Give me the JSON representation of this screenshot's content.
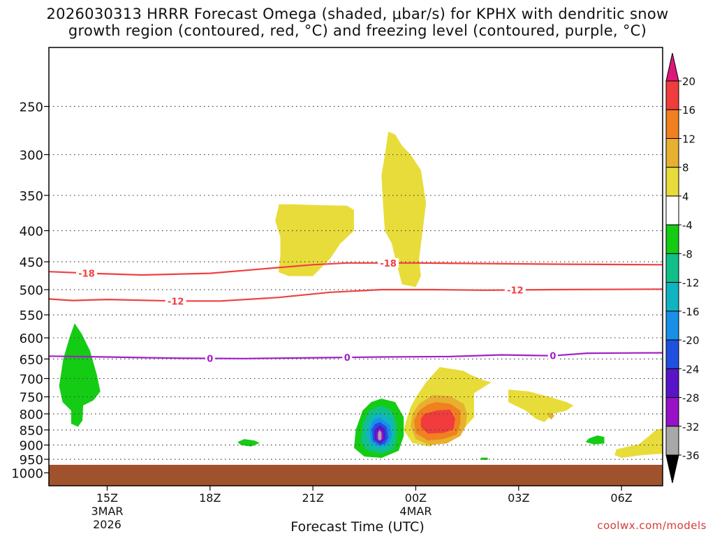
{
  "title_line1": "2026030313 HRRR Forecast Omega (shaded, μbar/s) for KPHX with dendritic snow",
  "title_line2": "growth region (contoured, red, °C) and freezing level (contoured, purple, °C)",
  "credit": "coolwx.com/models",
  "chart_data": {
    "type": "time-height contour",
    "title": "2026030313 HRRR Forecast Omega (shaded, μbar/s) for KPHX with dendritic snow growth region (contoured, red, °C) and freezing level (contoured, purple, °C)",
    "xlabel": "Forecast Time (UTC)",
    "ylabel": "",
    "xlim_hours": [
      13.3,
      31.2
    ],
    "ylim_hPa": [
      1050,
      200
    ],
    "y_scale": "log-pressure",
    "grid": true,
    "x_ticks": [
      {
        "hour": 15,
        "label": "15Z",
        "sub1": "3MAR",
        "sub2": "2026"
      },
      {
        "hour": 18,
        "label": "18Z",
        "sub1": "",
        "sub2": ""
      },
      {
        "hour": 21,
        "label": "21Z",
        "sub1": "",
        "sub2": ""
      },
      {
        "hour": 24,
        "label": "00Z",
        "sub1": "4MAR",
        "sub2": ""
      },
      {
        "hour": 27,
        "label": "03Z",
        "sub1": "",
        "sub2": ""
      },
      {
        "hour": 30,
        "label": "06Z",
        "sub1": "",
        "sub2": ""
      }
    ],
    "y_ticks": [
      250,
      300,
      350,
      400,
      450,
      500,
      550,
      600,
      650,
      700,
      750,
      800,
      850,
      900,
      950,
      1000
    ],
    "surface_pressure_hPa": 970,
    "surface_color": "#a0522d",
    "colorbar": {
      "labels": [
        "20",
        "16",
        "12",
        "8",
        "4",
        "-4",
        "-8",
        "-12",
        "-16",
        "-20",
        "-24",
        "-28",
        "-32",
        "-36"
      ],
      "colors": [
        "#e0157a",
        "#f03c3c",
        "#f08020",
        "#e8b030",
        "#e8dc3a",
        "#ffffff",
        "#14cc14",
        "#10c088",
        "#10b4c0",
        "#1890e8",
        "#2050e0",
        "#5a14c8",
        "#9810c8",
        "#a8a8a8",
        "#000000"
      ]
    },
    "contours": [
      {
        "name": "-18",
        "color": "#f04040",
        "label": "-18",
        "points": [
          [
            13.3,
            467
          ],
          [
            14.5,
            470
          ],
          [
            16,
            473
          ],
          [
            18,
            470
          ],
          [
            20,
            460
          ],
          [
            21,
            455
          ],
          [
            22,
            452
          ],
          [
            24,
            452
          ],
          [
            26,
            453
          ],
          [
            28,
            454
          ],
          [
            31.2,
            455
          ]
        ],
        "label_hours": [
          14.4,
          23.2
        ]
      },
      {
        "name": "-12",
        "color": "#f04040",
        "label": "-12",
        "points": [
          [
            13.3,
            518
          ],
          [
            14,
            521
          ],
          [
            15,
            519
          ],
          [
            17,
            522
          ],
          [
            18.3,
            522
          ],
          [
            20,
            515
          ],
          [
            21.5,
            505
          ],
          [
            23,
            500
          ],
          [
            24.5,
            500
          ],
          [
            26,
            501
          ],
          [
            28,
            500
          ],
          [
            31.2,
            499
          ]
        ],
        "label_hours": [
          17.0,
          26.9
        ]
      },
      {
        "name": "0",
        "color": "#a020c8",
        "label": "0",
        "points": [
          [
            13.3,
            643
          ],
          [
            15,
            645
          ],
          [
            17,
            648
          ],
          [
            19,
            649
          ],
          [
            21,
            647
          ],
          [
            23,
            645
          ],
          [
            25,
            644
          ],
          [
            26.5,
            640
          ],
          [
            28,
            642
          ],
          [
            29,
            636
          ],
          [
            31.2,
            635
          ]
        ],
        "label_hours": [
          18.0,
          22.0,
          28.0
        ]
      }
    ],
    "shaded_regions": [
      {
        "value_range": "-8 to -4",
        "color": "#14cc14",
        "outline": [
          [
            14.05,
            568
          ],
          [
            14.25,
            590
          ],
          [
            14.5,
            630
          ],
          [
            14.7,
            690
          ],
          [
            14.8,
            735
          ],
          [
            14.6,
            760
          ],
          [
            14.3,
            775
          ],
          [
            14.28,
            820
          ],
          [
            14.15,
            840
          ],
          [
            13.95,
            830
          ],
          [
            13.95,
            790
          ],
          [
            13.7,
            765
          ],
          [
            13.6,
            720
          ],
          [
            13.72,
            650
          ],
          [
            13.9,
            600
          ]
        ]
      },
      {
        "value_range": "4 to 8",
        "color": "#e8dc3a",
        "outline": [
          [
            20.0,
            362
          ],
          [
            20.4,
            362
          ],
          [
            21,
            363
          ],
          [
            22,
            364
          ],
          [
            22.2,
            370
          ],
          [
            22.2,
            400
          ],
          [
            21.8,
            420
          ],
          [
            21.5,
            445
          ],
          [
            21,
            475
          ],
          [
            20.3,
            475
          ],
          [
            20.0,
            468
          ],
          [
            20.05,
            440
          ],
          [
            20.05,
            410
          ],
          [
            19.9,
            385
          ],
          [
            20.0,
            365
          ]
        ]
      },
      {
        "value_range": "4 to 8",
        "color": "#e8dc3a",
        "outline": [
          [
            23.2,
            275
          ],
          [
            23.4,
            278
          ],
          [
            23.6,
            290
          ],
          [
            23.85,
            300
          ],
          [
            24.15,
            318
          ],
          [
            24.3,
            360
          ],
          [
            24.2,
            400
          ],
          [
            24.1,
            445
          ],
          [
            24.15,
            475
          ],
          [
            24.0,
            495
          ],
          [
            23.6,
            490
          ],
          [
            23.45,
            455
          ],
          [
            23.3,
            420
          ],
          [
            23.1,
            400
          ],
          [
            23.05,
            365
          ],
          [
            23.0,
            325
          ],
          [
            23.1,
            300
          ]
        ]
      },
      {
        "value_range": "4 to 8",
        "color": "#e8dc3a",
        "outline": [
          [
            24.7,
            670
          ],
          [
            25.4,
            680
          ],
          [
            25.6,
            690
          ],
          [
            26.0,
            705
          ],
          [
            26.2,
            710
          ],
          [
            25.7,
            740
          ],
          [
            25.7,
            810
          ],
          [
            25.45,
            840
          ],
          [
            25.25,
            860
          ],
          [
            24.9,
            880
          ],
          [
            24.4,
            905
          ],
          [
            23.9,
            893
          ],
          [
            23.65,
            850
          ],
          [
            23.75,
            810
          ],
          [
            23.85,
            780
          ],
          [
            24.0,
            752
          ],
          [
            24.3,
            710
          ]
        ]
      },
      {
        "value_range": "8 to 12",
        "color": "#e8b030",
        "outline": [
          [
            24.5,
            745
          ],
          [
            25.0,
            748
          ],
          [
            25.4,
            770
          ],
          [
            25.5,
            800
          ],
          [
            25.45,
            840
          ],
          [
            25.3,
            870
          ],
          [
            24.9,
            895
          ],
          [
            24.4,
            900
          ],
          [
            24.0,
            880
          ],
          [
            23.85,
            840
          ],
          [
            23.9,
            800
          ],
          [
            24.1,
            770
          ]
        ]
      },
      {
        "value_range": "12 to 16",
        "color": "#f08020",
        "outline": [
          [
            24.6,
            765
          ],
          [
            25.0,
            770
          ],
          [
            25.3,
            790
          ],
          [
            25.3,
            830
          ],
          [
            25.2,
            865
          ],
          [
            24.8,
            880
          ],
          [
            24.35,
            885
          ],
          [
            24.0,
            860
          ],
          [
            23.95,
            820
          ],
          [
            24.1,
            790
          ],
          [
            24.35,
            772
          ]
        ]
      },
      {
        "value_range": "16 to 20",
        "color": "#f03c3c",
        "outline": [
          [
            24.25,
            800
          ],
          [
            24.6,
            790
          ],
          [
            25.0,
            787
          ],
          [
            25.15,
            815
          ],
          [
            25.1,
            848
          ],
          [
            24.8,
            860
          ],
          [
            24.35,
            862
          ],
          [
            24.15,
            840
          ],
          [
            24.15,
            815
          ]
        ]
      },
      {
        "value_range": "-8 to -4",
        "color": "#14cc14",
        "outline": [
          [
            23.0,
            755
          ],
          [
            23.4,
            765
          ],
          [
            23.65,
            810
          ],
          [
            23.65,
            870
          ],
          [
            23.5,
            920
          ],
          [
            23.0,
            945
          ],
          [
            22.5,
            940
          ],
          [
            22.2,
            910
          ],
          [
            22.25,
            850
          ],
          [
            22.45,
            790
          ],
          [
            22.7,
            765
          ]
        ]
      },
      {
        "value_range": "-12 to -8",
        "color": "#10c088",
        "outline": [
          [
            23.0,
            775
          ],
          [
            23.3,
            790
          ],
          [
            23.45,
            830
          ],
          [
            23.45,
            880
          ],
          [
            23.35,
            915
          ],
          [
            23.0,
            930
          ],
          [
            22.6,
            920
          ],
          [
            22.4,
            890
          ],
          [
            22.45,
            830
          ],
          [
            22.65,
            790
          ]
        ]
      },
      {
        "value_range": "-16 to -12",
        "color": "#10b4c0",
        "outline": [
          [
            23.0,
            795
          ],
          [
            23.3,
            815
          ],
          [
            23.35,
            860
          ],
          [
            23.25,
            900
          ],
          [
            23.0,
            915
          ],
          [
            22.7,
            905
          ],
          [
            22.55,
            870
          ],
          [
            22.6,
            830
          ],
          [
            22.75,
            805
          ]
        ]
      },
      {
        "value_range": "-20 to -16",
        "color": "#1890e8",
        "outline": [
          [
            22.95,
            810
          ],
          [
            23.25,
            835
          ],
          [
            23.3,
            870
          ],
          [
            23.2,
            895
          ],
          [
            22.95,
            905
          ],
          [
            22.7,
            890
          ],
          [
            22.65,
            850
          ],
          [
            22.75,
            820
          ]
        ]
      },
      {
        "value_range": "-24 to -20",
        "color": "#2050e0",
        "outline": [
          [
            22.95,
            825
          ],
          [
            23.15,
            840
          ],
          [
            23.2,
            875
          ],
          [
            23.1,
            895
          ],
          [
            22.95,
            900
          ],
          [
            22.75,
            885
          ],
          [
            22.72,
            850
          ],
          [
            22.8,
            832
          ]
        ]
      },
      {
        "value_range": "-28 to -24",
        "color": "#5a14c8",
        "outline": [
          [
            22.95,
            835
          ],
          [
            23.1,
            848
          ],
          [
            23.12,
            880
          ],
          [
            22.95,
            895
          ],
          [
            22.8,
            880
          ],
          [
            22.8,
            850
          ]
        ]
      },
      {
        "value_range": "-32 to -28",
        "color": "#9810c8",
        "outline": [
          [
            22.95,
            845
          ],
          [
            23.05,
            858
          ],
          [
            23.05,
            880
          ],
          [
            22.95,
            890
          ],
          [
            22.85,
            880
          ],
          [
            22.85,
            858
          ]
        ]
      },
      {
        "value_range": "-36 to -32",
        "color": "#a8a8a8",
        "outline": [
          [
            22.95,
            850
          ],
          [
            23.0,
            860
          ],
          [
            23.0,
            880
          ],
          [
            22.95,
            885
          ],
          [
            22.9,
            880
          ],
          [
            22.9,
            860
          ]
        ]
      },
      {
        "value_range": "4 to 8",
        "color": "#e8dc3a",
        "outline": [
          [
            26.7,
            730
          ],
          [
            27.3,
            735
          ],
          [
            27.9,
            750
          ],
          [
            28.4,
            765
          ],
          [
            28.6,
            775
          ],
          [
            28.4,
            790
          ],
          [
            28.0,
            800
          ],
          [
            27.75,
            825
          ],
          [
            27.5,
            815
          ],
          [
            27.2,
            790
          ],
          [
            26.9,
            775
          ],
          [
            26.7,
            765
          ]
        ]
      },
      {
        "value_range": "8 to 12",
        "color": "#e8b030",
        "outline": [
          [
            27.9,
            795
          ],
          [
            28.05,
            805
          ],
          [
            27.95,
            818
          ],
          [
            27.85,
            805
          ]
        ]
      },
      {
        "value_range": "4 to 8",
        "color": "#e8dc3a",
        "outline": [
          [
            31.2,
            845
          ],
          [
            31.2,
            930
          ],
          [
            30.6,
            935
          ],
          [
            30.0,
            945
          ],
          [
            29.8,
            935
          ],
          [
            29.85,
            915
          ],
          [
            30.2,
            905
          ],
          [
            30.5,
            898
          ],
          [
            30.8,
            870
          ],
          [
            31.0,
            850
          ]
        ]
      },
      {
        "value_range": "-8 to -4",
        "color": "#14cc14",
        "outline": [
          [
            19.0,
            880
          ],
          [
            19.3,
            885
          ],
          [
            19.45,
            893
          ],
          [
            19.2,
            905
          ],
          [
            18.9,
            900
          ],
          [
            18.8,
            890
          ]
        ]
      },
      {
        "value_range": "-8 to -4",
        "color": "#14cc14",
        "outline": [
          [
            29.3,
            868
          ],
          [
            29.5,
            873
          ],
          [
            29.5,
            895
          ],
          [
            29.2,
            898
          ],
          [
            28.95,
            890
          ],
          [
            29.05,
            878
          ]
        ]
      },
      {
        "value_range": "-8 to -4",
        "color": "#14cc14",
        "outline": [
          [
            25.9,
            944
          ],
          [
            26.1,
            944
          ],
          [
            26.1,
            952
          ],
          [
            25.9,
            952
          ]
        ]
      }
    ]
  }
}
